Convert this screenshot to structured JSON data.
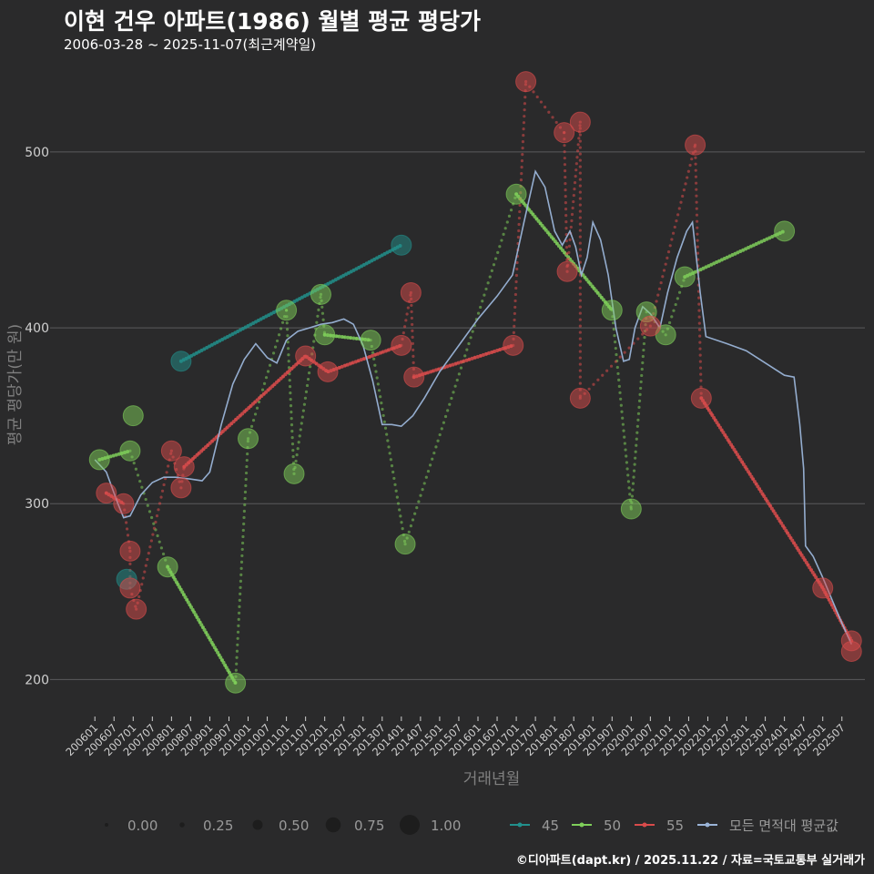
{
  "header": {
    "title": "이현 건우 아파트(1986) 월별 평균 평당가",
    "subtitle": "2006-03-28 ~ 2025-11-07(최근계약일)"
  },
  "caption": "©디아파트(dapt.kr) / 2025.11.22 / 자료=국토교통부 실거래가",
  "colors": {
    "background": "#2a2a2b",
    "grid": "#5a5a5c",
    "axis_text": "#d0d0d0",
    "axis_title": "#808080",
    "legend_text": "#9a9a9a",
    "s45": "#21908c",
    "s50": "#7fcf5a",
    "s55": "#d94b4b",
    "avg": "#9ab4d8"
  },
  "chart_data": {
    "type": "scatter",
    "title": "이현 건우 아파트(1986) 월별 평균 평당가",
    "xlabel": "거래년월",
    "ylabel": "평균 평당가(만 원)",
    "ylim": [
      180,
      545
    ],
    "yticks": [
      200,
      300,
      400,
      500
    ],
    "xlim": [
      2005.9,
      2026.1
    ],
    "xticks": [
      {
        "label": "200601",
        "t": 2006.0
      },
      {
        "label": "200607",
        "t": 2006.5
      },
      {
        "label": "200701",
        "t": 2007.0
      },
      {
        "label": "200707",
        "t": 2007.5
      },
      {
        "label": "200801",
        "t": 2008.0
      },
      {
        "label": "200807",
        "t": 2008.5
      },
      {
        "label": "200901",
        "t": 2009.0
      },
      {
        "label": "200907",
        "t": 2009.5
      },
      {
        "label": "201001",
        "t": 2010.0
      },
      {
        "label": "201007",
        "t": 2010.5
      },
      {
        "label": "201101",
        "t": 2011.0
      },
      {
        "label": "201107",
        "t": 2011.5
      },
      {
        "label": "201201",
        "t": 2012.0
      },
      {
        "label": "201207",
        "t": 2012.5
      },
      {
        "label": "201301",
        "t": 2013.0
      },
      {
        "label": "201307",
        "t": 2013.5
      },
      {
        "label": "201401",
        "t": 2014.0
      },
      {
        "label": "201407",
        "t": 2014.5
      },
      {
        "label": "201501",
        "t": 2015.0
      },
      {
        "label": "201507",
        "t": 2015.5
      },
      {
        "label": "201601",
        "t": 2016.0
      },
      {
        "label": "201607",
        "t": 2016.5
      },
      {
        "label": "201701",
        "t": 2017.0
      },
      {
        "label": "201707",
        "t": 2017.5
      },
      {
        "label": "201801",
        "t": 2018.0
      },
      {
        "label": "201807",
        "t": 2018.5
      },
      {
        "label": "201901",
        "t": 2019.0
      },
      {
        "label": "201907",
        "t": 2019.5
      },
      {
        "label": "202001",
        "t": 2020.0
      },
      {
        "label": "202007",
        "t": 2020.5
      },
      {
        "label": "202101",
        "t": 2021.0
      },
      {
        "label": "202107",
        "t": 2021.5
      },
      {
        "label": "202201",
        "t": 2022.0
      },
      {
        "label": "202207",
        "t": 2022.5
      },
      {
        "label": "202301",
        "t": 2023.0
      },
      {
        "label": "202307",
        "t": 2023.5
      },
      {
        "label": "202401",
        "t": 2024.0
      },
      {
        "label": "202407",
        "t": 2024.5
      },
      {
        "label": "202501",
        "t": 2025.0
      },
      {
        "label": "202507",
        "t": 2025.5
      }
    ],
    "series": [
      {
        "name": "45",
        "key": "s45",
        "points": [
          {
            "t": 2006.83,
            "v": 257,
            "s": 0.5
          },
          {
            "t": 2008.25,
            "v": 381,
            "s": 0.5
          },
          {
            "t": 2014.0,
            "v": 447,
            "s": 0.5
          }
        ],
        "trend": [
          [
            2008.25,
            381
          ],
          [
            2014.0,
            447
          ]
        ]
      },
      {
        "name": "50",
        "key": "s50",
        "points": [
          {
            "t": 2006.12,
            "v": 325,
            "s": 0.5
          },
          {
            "t": 2006.92,
            "v": 330,
            "s": 0.5
          },
          {
            "t": 2007.0,
            "v": 350,
            "s": 0.5
          },
          {
            "t": 2007.9,
            "v": 264,
            "s": 0.5
          },
          {
            "t": 2009.67,
            "v": 198,
            "s": 0.5
          },
          {
            "t": 2010.0,
            "v": 337,
            "s": 0.5
          },
          {
            "t": 2011.0,
            "v": 410,
            "s": 0.5
          },
          {
            "t": 2011.2,
            "v": 317,
            "s": 0.5
          },
          {
            "t": 2011.9,
            "v": 419,
            "s": 0.5
          },
          {
            "t": 2012.0,
            "v": 396,
            "s": 0.5
          },
          {
            "t": 2013.2,
            "v": 393,
            "s": 0.5
          },
          {
            "t": 2014.1,
            "v": 277,
            "s": 0.5
          },
          {
            "t": 2017.0,
            "v": 476,
            "s": 0.5
          },
          {
            "t": 2019.5,
            "v": 410,
            "s": 0.5
          },
          {
            "t": 2020.0,
            "v": 297,
            "s": 0.5
          },
          {
            "t": 2020.4,
            "v": 409,
            "s": 0.5
          },
          {
            "t": 2020.9,
            "v": 396,
            "s": 0.5
          },
          {
            "t": 2021.4,
            "v": 429,
            "s": 0.5
          },
          {
            "t": 2024.0,
            "v": 455,
            "s": 0.5
          }
        ],
        "trend": [
          [
            2006.12,
            325
          ],
          [
            2006.92,
            330
          ],
          null,
          [
            2007.9,
            264
          ],
          [
            2009.67,
            198
          ],
          null,
          [
            2012.0,
            396
          ],
          [
            2013.2,
            393
          ],
          null,
          [
            2017.0,
            476
          ],
          [
            2019.5,
            410
          ],
          null,
          [
            2021.4,
            429
          ],
          [
            2024.0,
            455
          ]
        ],
        "dots": [
          [
            2006.92,
            330
          ],
          [
            2007.9,
            264
          ],
          [
            2009.67,
            198
          ],
          [
            2010.0,
            337
          ],
          [
            2011.0,
            410
          ],
          [
            2011.2,
            317
          ],
          [
            2011.9,
            419
          ],
          [
            2012.0,
            396
          ],
          [
            2013.2,
            393
          ],
          [
            2014.1,
            277
          ],
          [
            2017.0,
            476
          ],
          [
            2019.5,
            410
          ],
          [
            2020.0,
            297
          ],
          [
            2020.4,
            409
          ],
          [
            2020.9,
            396
          ],
          [
            2021.4,
            429
          ]
        ]
      },
      {
        "name": "55",
        "key": "s55",
        "points": [
          {
            "t": 2006.3,
            "v": 306,
            "s": 0.5
          },
          {
            "t": 2006.75,
            "v": 300,
            "s": 0.5
          },
          {
            "t": 2006.92,
            "v": 273,
            "s": 0.5
          },
          {
            "t": 2006.92,
            "v": 252,
            "s": 0.5
          },
          {
            "t": 2007.08,
            "v": 240,
            "s": 0.5
          },
          {
            "t": 2008.0,
            "v": 330,
            "s": 0.5
          },
          {
            "t": 2008.25,
            "v": 309,
            "s": 0.5
          },
          {
            "t": 2008.33,
            "v": 321,
            "s": 0.5
          },
          {
            "t": 2011.5,
            "v": 384,
            "s": 0.5
          },
          {
            "t": 2012.08,
            "v": 375,
            "s": 0.5
          },
          {
            "t": 2014.0,
            "v": 390,
            "s": 0.5
          },
          {
            "t": 2014.25,
            "v": 420,
            "s": 0.5
          },
          {
            "t": 2014.33,
            "v": 372,
            "s": 0.5
          },
          {
            "t": 2016.92,
            "v": 390,
            "s": 0.5
          },
          {
            "t": 2017.25,
            "v": 540,
            "s": 0.5
          },
          {
            "t": 2018.25,
            "v": 511,
            "s": 0.5
          },
          {
            "t": 2018.33,
            "v": 432,
            "s": 0.5
          },
          {
            "t": 2018.67,
            "v": 517,
            "s": 0.5
          },
          {
            "t": 2018.67,
            "v": 360,
            "s": 0.5
          },
          {
            "t": 2020.5,
            "v": 401,
            "s": 0.5
          },
          {
            "t": 2021.67,
            "v": 504,
            "s": 0.5
          },
          {
            "t": 2021.83,
            "v": 360,
            "s": 0.5
          },
          {
            "t": 2025.0,
            "v": 252,
            "s": 0.5
          },
          {
            "t": 2025.75,
            "v": 222,
            "s": 0.5
          },
          {
            "t": 2025.75,
            "v": 216,
            "s": 0.5
          }
        ],
        "trend": [
          [
            2006.3,
            306
          ],
          [
            2006.75,
            300
          ],
          null,
          [
            2008.33,
            321
          ],
          [
            2011.5,
            384
          ],
          [
            2012.08,
            375
          ],
          [
            2014.0,
            390
          ],
          null,
          [
            2014.33,
            372
          ],
          [
            2016.92,
            390
          ],
          null,
          [
            2021.83,
            360
          ],
          [
            2025.0,
            252
          ],
          [
            2025.75,
            222
          ]
        ],
        "dots": [
          [
            2006.3,
            306
          ],
          [
            2006.75,
            300
          ],
          [
            2006.92,
            273
          ],
          [
            2006.92,
            252
          ],
          [
            2007.08,
            240
          ],
          [
            2008.0,
            330
          ],
          [
            2008.25,
            309
          ],
          [
            2008.33,
            321
          ],
          [
            2011.5,
            384
          ],
          [
            2012.08,
            375
          ],
          [
            2014.0,
            390
          ],
          [
            2014.25,
            420
          ],
          [
            2014.33,
            372
          ],
          [
            2016.92,
            390
          ],
          [
            2017.25,
            540
          ],
          [
            2018.25,
            511
          ],
          [
            2018.33,
            432
          ],
          [
            2018.67,
            517
          ],
          [
            2018.67,
            360
          ],
          [
            2020.5,
            401
          ],
          [
            2021.67,
            504
          ],
          [
            2021.83,
            360
          ],
          [
            2025.0,
            252
          ],
          [
            2025.75,
            222
          ]
        ]
      },
      {
        "name": "모든 면적대 평균값",
        "key": "avg",
        "line": [
          [
            2006.0,
            325
          ],
          [
            2006.3,
            318
          ],
          [
            2006.6,
            300
          ],
          [
            2006.75,
            292
          ],
          [
            2006.92,
            293
          ],
          [
            2007.2,
            305
          ],
          [
            2007.5,
            312
          ],
          [
            2007.8,
            315
          ],
          [
            2008.1,
            315
          ],
          [
            2008.5,
            314
          ],
          [
            2008.8,
            313
          ],
          [
            2009.0,
            318
          ],
          [
            2009.3,
            345
          ],
          [
            2009.6,
            368
          ],
          [
            2009.9,
            382
          ],
          [
            2010.2,
            391
          ],
          [
            2010.5,
            383
          ],
          [
            2010.75,
            380
          ],
          [
            2011.0,
            393
          ],
          [
            2011.3,
            398
          ],
          [
            2011.6,
            400
          ],
          [
            2011.9,
            402
          ],
          [
            2012.2,
            403
          ],
          [
            2012.5,
            405
          ],
          [
            2012.75,
            402
          ],
          [
            2013.0,
            390
          ],
          [
            2013.25,
            370
          ],
          [
            2013.5,
            345
          ],
          [
            2013.75,
            345
          ],
          [
            2014.0,
            344
          ],
          [
            2014.3,
            350
          ],
          [
            2014.6,
            360
          ],
          [
            2015.0,
            375
          ],
          [
            2015.5,
            390
          ],
          [
            2016.0,
            405
          ],
          [
            2016.5,
            418
          ],
          [
            2016.9,
            430
          ],
          [
            2017.2,
            460
          ],
          [
            2017.5,
            489
          ],
          [
            2017.75,
            480
          ],
          [
            2018.0,
            455
          ],
          [
            2018.2,
            447
          ],
          [
            2018.4,
            455
          ],
          [
            2018.55,
            446
          ],
          [
            2018.7,
            430
          ],
          [
            2018.85,
            440
          ],
          [
            2019.0,
            460
          ],
          [
            2019.2,
            450
          ],
          [
            2019.4,
            430
          ],
          [
            2019.6,
            400
          ],
          [
            2019.8,
            381
          ],
          [
            2019.95,
            382
          ],
          [
            2020.1,
            400
          ],
          [
            2020.3,
            412
          ],
          [
            2020.5,
            408
          ],
          [
            2020.75,
            400
          ],
          [
            2020.95,
            420
          ],
          [
            2021.2,
            440
          ],
          [
            2021.45,
            455
          ],
          [
            2021.6,
            460
          ],
          [
            2021.8,
            420
          ],
          [
            2021.95,
            395
          ],
          [
            2022.5,
            391
          ],
          [
            2023.0,
            387
          ],
          [
            2023.5,
            380
          ],
          [
            2024.0,
            373
          ],
          [
            2024.25,
            372
          ],
          [
            2024.4,
            345
          ],
          [
            2024.5,
            320
          ],
          [
            2024.55,
            276
          ],
          [
            2024.75,
            270
          ],
          [
            2025.0,
            258
          ],
          [
            2025.25,
            245
          ],
          [
            2025.5,
            232
          ],
          [
            2025.75,
            220
          ]
        ]
      }
    ],
    "size_legend": {
      "title": "",
      "labels": [
        "0.00",
        "0.25",
        "0.50",
        "0.75",
        "1.00"
      ],
      "values": [
        0.0,
        0.25,
        0.5,
        0.75,
        1.0
      ]
    },
    "color_legend": {
      "labels": [
        "45",
        "50",
        "55",
        "모든 면적대 평균값"
      ],
      "keys": [
        "s45",
        "s50",
        "s55",
        "avg"
      ]
    },
    "legend_position": "bottom"
  }
}
